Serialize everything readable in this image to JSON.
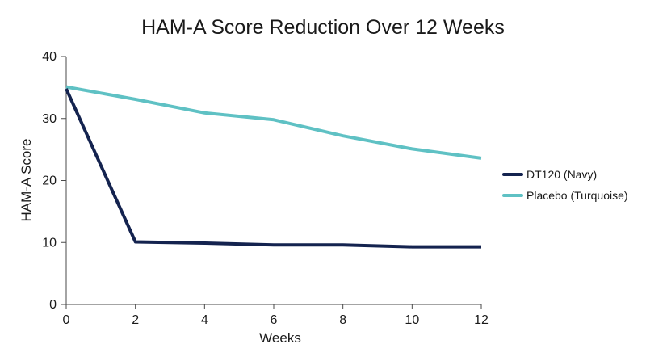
{
  "chart_data": {
    "type": "line",
    "title": "HAM-A Score Reduction Over 12 Weeks",
    "xlabel": "Weeks",
    "ylabel": "HAM-A Score",
    "x": [
      0,
      2,
      4,
      6,
      8,
      10,
      12
    ],
    "xlim": [
      0,
      12
    ],
    "ylim": [
      0,
      40
    ],
    "xticks": [
      "0",
      "2",
      "4",
      "6",
      "8",
      "10",
      "12"
    ],
    "yticks": [
      "0",
      "10",
      "20",
      "30",
      "40"
    ],
    "grid": false,
    "legend_position": "right",
    "series": [
      {
        "name": "DT120 (Navy)",
        "color": "#14234f",
        "values": [
          34.8,
          10.1,
          9.9,
          9.6,
          9.6,
          9.3,
          9.3
        ]
      },
      {
        "name": "Placebo (Turquoise)",
        "color": "#5fc1c4",
        "values": [
          35.1,
          33.1,
          30.9,
          29.8,
          27.2,
          25.1,
          23.6
        ]
      }
    ]
  }
}
